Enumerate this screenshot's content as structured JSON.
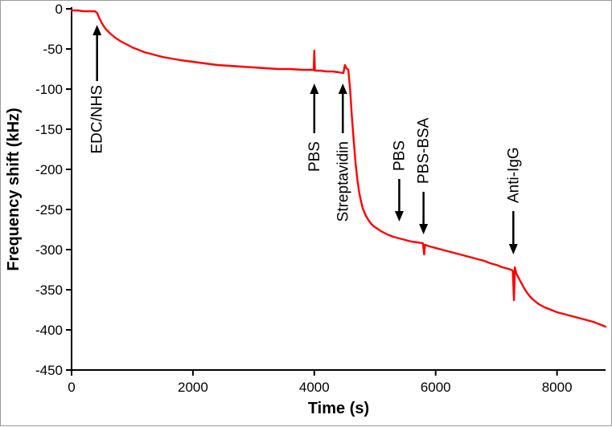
{
  "chart_data": {
    "type": "line",
    "title": "",
    "xlabel": "Time (s)",
    "ylabel": "Frequency shift (kHz)",
    "xlim": [
      0,
      8800
    ],
    "ylim": [
      -450,
      0
    ],
    "x_ticks": [
      0,
      2000,
      4000,
      6000,
      8000
    ],
    "y_ticks": [
      0,
      -50,
      -100,
      -150,
      -200,
      -250,
      -300,
      -350,
      -400,
      -450
    ],
    "grid": false,
    "legend": "none",
    "line_color": "#ff0000",
    "axis_color": "#000000",
    "series": [
      {
        "name": "frequency-shift",
        "points": [
          [
            0,
            -2
          ],
          [
            100,
            -2
          ],
          [
            200,
            -3
          ],
          [
            300,
            -3
          ],
          [
            380,
            -3
          ],
          [
            420,
            -5
          ],
          [
            460,
            -12
          ],
          [
            500,
            -18
          ],
          [
            560,
            -25
          ],
          [
            640,
            -31
          ],
          [
            720,
            -36
          ],
          [
            800,
            -40
          ],
          [
            900,
            -44
          ],
          [
            1000,
            -48
          ],
          [
            1100,
            -51
          ],
          [
            1200,
            -54
          ],
          [
            1350,
            -57
          ],
          [
            1500,
            -60
          ],
          [
            1650,
            -62
          ],
          [
            1800,
            -64
          ],
          [
            2000,
            -66
          ],
          [
            2200,
            -68
          ],
          [
            2400,
            -70
          ],
          [
            2600,
            -71
          ],
          [
            2800,
            -72
          ],
          [
            3000,
            -73
          ],
          [
            3200,
            -74
          ],
          [
            3400,
            -75
          ],
          [
            3600,
            -75
          ],
          [
            3800,
            -76
          ],
          [
            3990,
            -76
          ],
          [
            4000,
            -52
          ],
          [
            4010,
            -77
          ],
          [
            4100,
            -77
          ],
          [
            4200,
            -78
          ],
          [
            4300,
            -78
          ],
          [
            4400,
            -79
          ],
          [
            4480,
            -80
          ],
          [
            4505,
            -70
          ],
          [
            4530,
            -74
          ],
          [
            4560,
            -76
          ],
          [
            4590,
            -100
          ],
          [
            4620,
            -135
          ],
          [
            4650,
            -165
          ],
          [
            4680,
            -192
          ],
          [
            4710,
            -213
          ],
          [
            4740,
            -229
          ],
          [
            4770,
            -240
          ],
          [
            4800,
            -249
          ],
          [
            4850,
            -258
          ],
          [
            4900,
            -264
          ],
          [
            4950,
            -269
          ],
          [
            5000,
            -272
          ],
          [
            5100,
            -277
          ],
          [
            5200,
            -281
          ],
          [
            5300,
            -284
          ],
          [
            5400,
            -286
          ],
          [
            5500,
            -288
          ],
          [
            5600,
            -290
          ],
          [
            5700,
            -291
          ],
          [
            5790,
            -292
          ],
          [
            5810,
            -306
          ],
          [
            5825,
            -294
          ],
          [
            5900,
            -296
          ],
          [
            6000,
            -298
          ],
          [
            6100,
            -300
          ],
          [
            6200,
            -302
          ],
          [
            6300,
            -304
          ],
          [
            6400,
            -306
          ],
          [
            6500,
            -308
          ],
          [
            6600,
            -310
          ],
          [
            6700,
            -312
          ],
          [
            6800,
            -314
          ],
          [
            6900,
            -317
          ],
          [
            7000,
            -319
          ],
          [
            7100,
            -322
          ],
          [
            7200,
            -324
          ],
          [
            7270,
            -326
          ],
          [
            7290,
            -363
          ],
          [
            7305,
            -322
          ],
          [
            7330,
            -330
          ],
          [
            7360,
            -334
          ],
          [
            7400,
            -340
          ],
          [
            7450,
            -347
          ],
          [
            7500,
            -353
          ],
          [
            7550,
            -358
          ],
          [
            7600,
            -362
          ],
          [
            7650,
            -365
          ],
          [
            7700,
            -368
          ],
          [
            7800,
            -372
          ],
          [
            7900,
            -375
          ],
          [
            8000,
            -378
          ],
          [
            8100,
            -380
          ],
          [
            8200,
            -382
          ],
          [
            8300,
            -384
          ],
          [
            8400,
            -386
          ],
          [
            8500,
            -388
          ],
          [
            8600,
            -390
          ],
          [
            8700,
            -393
          ],
          [
            8800,
            -396
          ]
        ]
      }
    ],
    "annotations": [
      {
        "label": "EDC/NHS",
        "x": 420,
        "arrow": "up",
        "tip_y": -20,
        "tail_y": -90,
        "text_y": -95
      },
      {
        "label": "PBS",
        "x": 4000,
        "arrow": "up",
        "tip_y": -93,
        "tail_y": -155,
        "text_y": -165
      },
      {
        "label": "Streptavidin",
        "x": 4470,
        "arrow": "up",
        "tip_y": -93,
        "tail_y": -155,
        "text_y": -165
      },
      {
        "label": "PBS",
        "x": 5400,
        "arrow": "down",
        "tip_y": -265,
        "tail_y": -212,
        "text_y": -202
      },
      {
        "label": "PBS-BSA",
        "x": 5800,
        "arrow": "down",
        "tip_y": -281,
        "tail_y": -228,
        "text_y": -218
      },
      {
        "label": "Anti-IgG",
        "x": 7280,
        "arrow": "down",
        "tip_y": -306,
        "tail_y": -252,
        "text_y": -242
      }
    ]
  }
}
